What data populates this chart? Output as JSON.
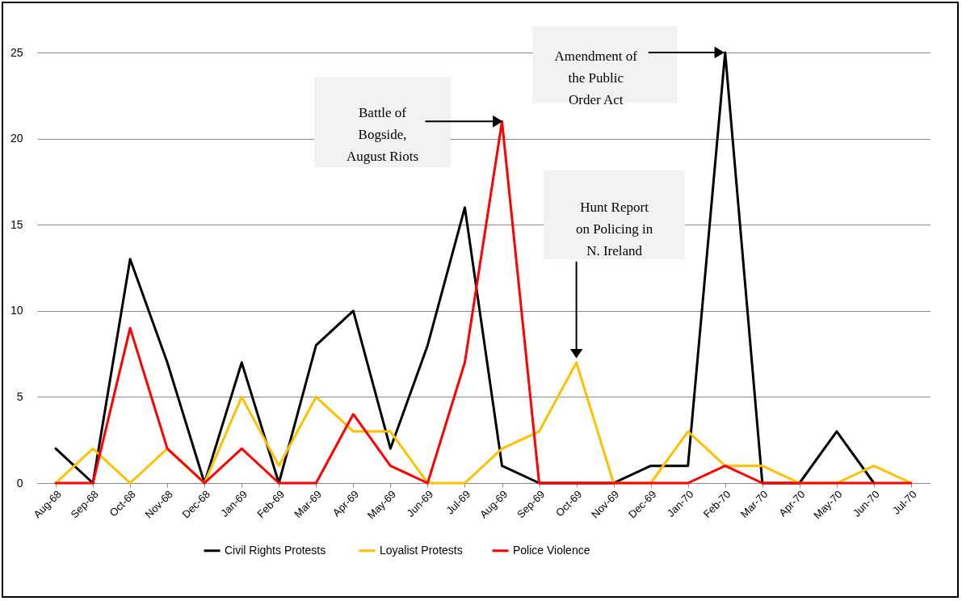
{
  "chart_data": {
    "type": "line",
    "categories": [
      "Aug-68",
      "Sep-68",
      "Oct-68",
      "Nov-68",
      "Dec-68",
      "Jan-69",
      "Feb-69",
      "Mar-69",
      "Apr-69",
      "May-69",
      "Jun-69",
      "Jul-69",
      "Aug-69",
      "Sep-69",
      "Oct-69",
      "Nov-69",
      "Dec-69",
      "Jan-70",
      "Feb-70",
      "Mar-70",
      "Apr-70",
      "May-70",
      "Jun-70",
      "Jul-70"
    ],
    "series": [
      {
        "name": "Civil Rights  Protests",
        "color": "#000000",
        "values": [
          2,
          0,
          13,
          7,
          0,
          7,
          0,
          8,
          10,
          2,
          8,
          16,
          1,
          0,
          0,
          0,
          1,
          1,
          25,
          0,
          0,
          3,
          0,
          null
        ]
      },
      {
        "name": "Loyalist Protests",
        "color": "#ffc000",
        "values": [
          0,
          2,
          0,
          2,
          0,
          5,
          1,
          5,
          3,
          3,
          0,
          0,
          2,
          3,
          7,
          0,
          0,
          3,
          1,
          1,
          0,
          0,
          1,
          0
        ]
      },
      {
        "name": "Police Violence",
        "color": "#ff0000",
        "values": [
          0,
          0,
          9,
          2,
          0,
          2,
          0,
          0,
          4,
          1,
          0,
          7,
          21,
          0,
          0,
          0,
          0,
          0,
          1,
          0,
          0,
          0,
          0,
          0
        ]
      }
    ],
    "ylim": [
      0,
      25
    ],
    "yticks": [
      0,
      5,
      10,
      15,
      20,
      25
    ],
    "grid": "y",
    "legend": "bottom",
    "annotations": [
      {
        "text": "Battle of\nBogside,\nAugust Riots",
        "x": "Aug-69",
        "y": 21
      },
      {
        "text": "Amendment of\nthe Public\nOrder Act",
        "x": "Feb-70",
        "y": 25
      },
      {
        "text": "Hunt Report\non Policing in\nN. Ireland",
        "x": "Oct-69",
        "y": 7
      }
    ]
  }
}
